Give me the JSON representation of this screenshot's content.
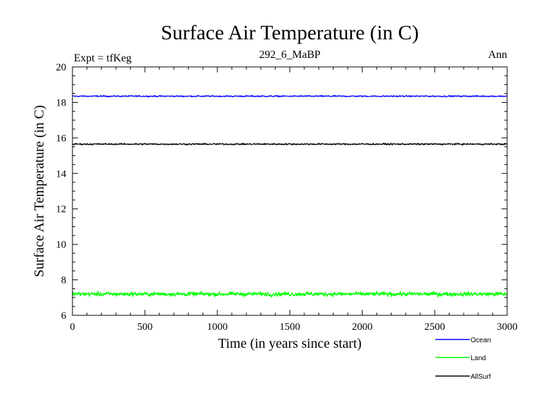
{
  "chart_data": {
    "type": "line",
    "title": "Surface Air Temperature (in C)",
    "subtitle": "292_6_MaBP",
    "annotations": {
      "left": "Expt = tfKeg",
      "right": "Ann"
    },
    "xlabel": "Time (in years since start)",
    "ylabel": "Surface Air Temperature (in C)",
    "xlim": [
      0,
      3000
    ],
    "ylim": [
      6,
      20
    ],
    "x_ticks": [
      0,
      500,
      1000,
      1500,
      2000,
      2500,
      3000
    ],
    "y_ticks": [
      6,
      8,
      10,
      12,
      14,
      16,
      18,
      20
    ],
    "grid": false,
    "legend": "bottom-right",
    "series": [
      {
        "name": "Ocean",
        "color": "#0000ff",
        "mean": 18.35,
        "noise_amplitude": 0.08
      },
      {
        "name": "Land",
        "color": "#00ff00",
        "mean": 7.2,
        "noise_amplitude": 0.25
      },
      {
        "name": "AllSurf",
        "color": "#000000",
        "mean": 15.65,
        "noise_amplitude": 0.09
      }
    ]
  }
}
